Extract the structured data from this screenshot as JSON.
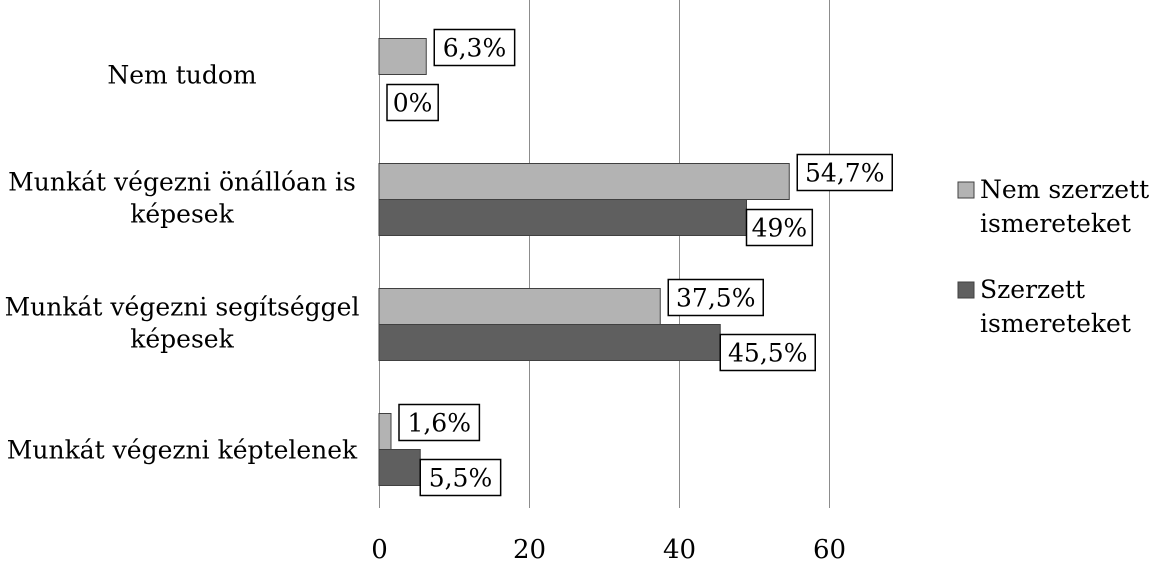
{
  "chart_data": {
    "type": "bar",
    "orientation": "horizontal",
    "categories": [
      [
        "Nem tudom"
      ],
      [
        "Munkát végezni önállóan is",
        "képesek"
      ],
      [
        "Munkát végezni segítséggel",
        "képesek"
      ],
      [
        "Munkát végezni képtelenek"
      ]
    ],
    "series": [
      {
        "name": "Nem szerzett ismereteket",
        "legend_lines": [
          "Nem szerzett",
          "ismereteket"
        ],
        "color": "#b3b3b3",
        "values": [
          6.3,
          54.7,
          37.5,
          1.6
        ],
        "labels": [
          "6,3%",
          "54,7%",
          "37,5%",
          "1,6%"
        ]
      },
      {
        "name": "Szerzett ismereteket",
        "legend_lines": [
          "Szerzett",
          "ismereteket"
        ],
        "color": "#5f5f5f",
        "values": [
          0,
          49,
          45.5,
          5.5
        ],
        "labels": [
          "0%",
          "49%",
          "45,5%",
          "5,5%"
        ]
      }
    ],
    "xlim": [
      0,
      60
    ],
    "xticks": [
      0,
      20,
      40,
      60
    ],
    "xtick_labels": [
      "0",
      "20",
      "40",
      "60"
    ],
    "grid": "vertical",
    "legend_position": "right"
  }
}
